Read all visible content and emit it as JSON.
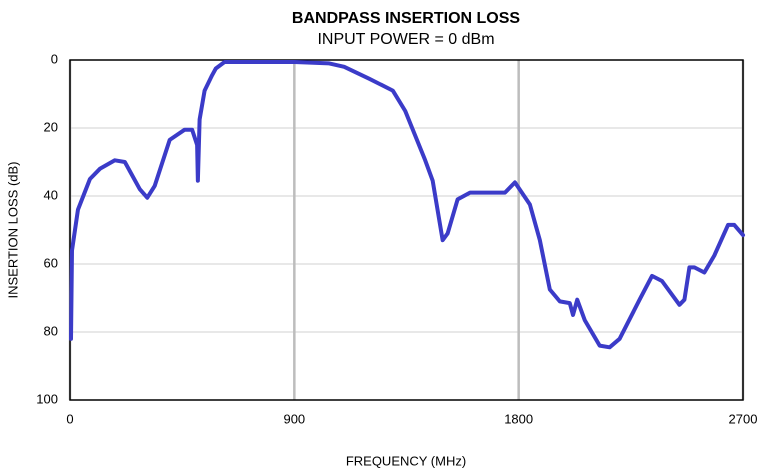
{
  "chart_data": {
    "type": "line",
    "title": "BANDPASS INSERTION LOSS",
    "subtitle": "INPUT POWER = 0 dBm",
    "x_label": "FREQUENCY (MHz)",
    "y_label": "INSERTION LOSS (dB)",
    "xlim": [
      0,
      2700
    ],
    "xticks": [
      0,
      900,
      1800,
      2700
    ],
    "ylim": [
      0,
      100
    ],
    "yticks": [
      0,
      20,
      40,
      60,
      80,
      100
    ],
    "y_inverted": true,
    "grid": true,
    "series": [
      {
        "name": "Insertion loss",
        "color": "#3b3bc8",
        "x": [
          4,
          8,
          32,
          80,
          120,
          180,
          220,
          280,
          310,
          340,
          400,
          460,
          490,
          510,
          513,
          520,
          540,
          570,
          585,
          620,
          900,
          1040,
          1100,
          1200,
          1295,
          1345,
          1425,
          1455,
          1495,
          1515,
          1555,
          1605,
          1745,
          1785,
          1845,
          1885,
          1925,
          1965,
          2005,
          2018,
          2035,
          2065,
          2125,
          2165,
          2205,
          2285,
          2335,
          2375,
          2445,
          2465,
          2485,
          2505,
          2545,
          2585,
          2640,
          2665,
          2700
        ],
        "values": [
          82,
          56,
          44,
          35,
          32,
          29.5,
          30,
          38,
          40.5,
          37,
          23.5,
          20.5,
          20.5,
          25,
          35.5,
          17.5,
          9,
          4.5,
          2.5,
          0.6,
          0.6,
          1,
          2,
          5.5,
          9,
          15,
          29.5,
          35.5,
          53,
          51,
          41,
          39,
          39,
          36,
          42.5,
          53,
          67.5,
          71,
          71.5,
          75,
          70.5,
          76.5,
          84,
          84.5,
          82,
          70.5,
          63.5,
          65,
          72,
          70.5,
          61,
          61,
          62.5,
          57.5,
          48.5,
          48.5,
          51.5
        ]
      }
    ]
  }
}
